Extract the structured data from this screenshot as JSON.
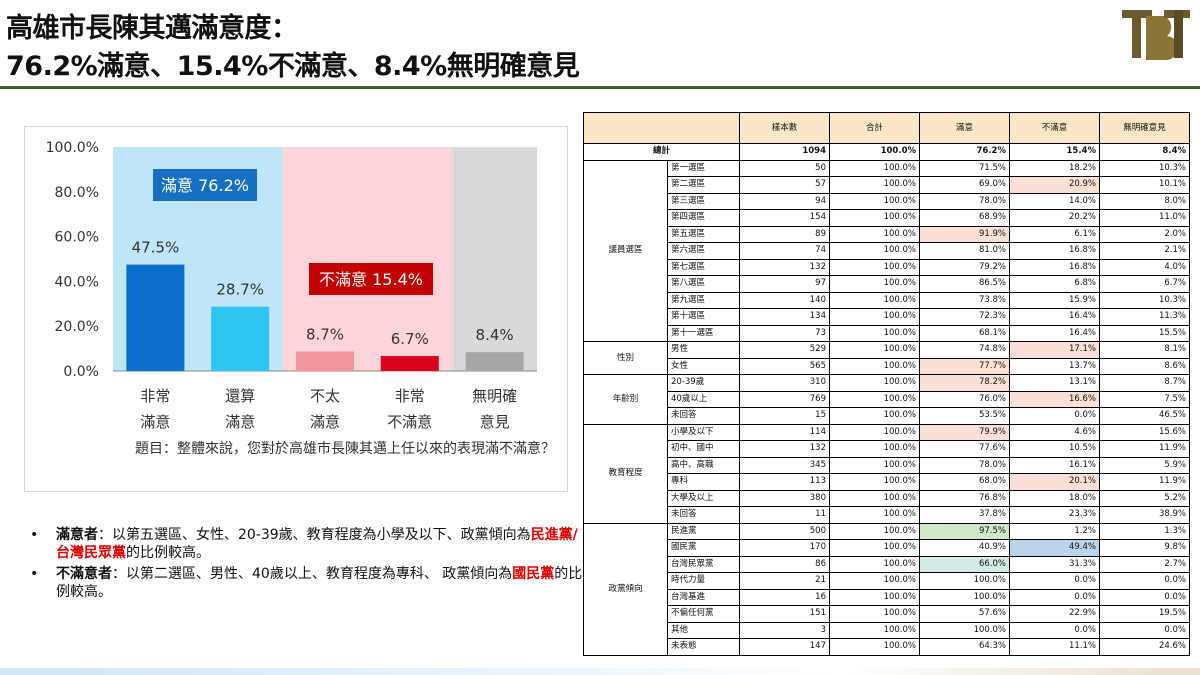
{
  "header": {
    "title_line1": "高雄市長陳其邁滿意度：",
    "title_line2": "76.2%滿意、15.4%不滿意、8.4%無明確意見",
    "logo_text": "TBT"
  },
  "colors": {
    "sat_bg": "#bfe6f8",
    "dissat_bg": "#ffd5d9",
    "none_bg": "#d9d9d9",
    "bar_very_sat": "#0b6fc9",
    "bar_sat": "#2fc4f2",
    "bar_not_very": "#f2959d",
    "bar_very_dissat": "#d9001b",
    "bar_none": "#a6a6a6",
    "sat_label_bg": "#1670c2",
    "dissat_label_bg": "#c00000",
    "rule": "#3d5a2a"
  },
  "chart_data": {
    "type": "bar",
    "categories": [
      "非常滿意",
      "還算滿意",
      "不太滿意",
      "非常不滿意",
      "無明確意見"
    ],
    "category_lines": [
      [
        "非常",
        "滿意"
      ],
      [
        "還算",
        "滿意"
      ],
      [
        "不太",
        "滿意"
      ],
      [
        "非常",
        "不滿意"
      ],
      [
        "無明確",
        "意見"
      ]
    ],
    "values": [
      47.5,
      28.7,
      8.7,
      6.7,
      8.4
    ],
    "value_labels": [
      "47.5%",
      "28.7%",
      "8.7%",
      "6.7%",
      "8.4%"
    ],
    "ylim": [
      0,
      100
    ],
    "yticks": [
      "0.0%",
      "20.0%",
      "40.0%",
      "60.0%",
      "80.0%",
      "100.0%"
    ],
    "group_labels": {
      "satisfied": "滿意 76.2%",
      "dissatisfied": "不滿意 15.4%"
    },
    "question": "題目：整體來說，您對於高雄市長陳其邁上任以來的表現滿不滿意？"
  },
  "bullets": [
    {
      "label": "滿意者",
      "text_before": "：以第五選區、女性、20-39歲、教育程度為小學及以下、政黨傾向為",
      "highlight": "民進黨/台灣民眾黨",
      "text_after": "的比例較高。"
    },
    {
      "label": "不滿意者",
      "text_before": "：以第二選區、男性、40歲以上、教育程度為專科、 政黨傾向為",
      "highlight": "國民黨",
      "text_after": "的比例較高。"
    }
  ],
  "table": {
    "headers": [
      "",
      "",
      "樣本數",
      "合計",
      "滿意",
      "不滿意",
      "無明確意見"
    ],
    "total": {
      "label": "總計",
      "values": [
        "1094",
        "100.0%",
        "76.2%",
        "15.4%",
        "8.4%"
      ]
    },
    "groups": [
      {
        "name": "議員選區",
        "rows": [
          {
            "label": "第一選區",
            "values": [
              "50",
              "100.0%",
              "71.5%",
              "18.2%",
              "10.3%"
            ]
          },
          {
            "label": "第二選區",
            "values": [
              "57",
              "100.0%",
              "69.0%",
              "20.9%",
              "10.1%"
            ],
            "hl": {
              "3": "pink"
            }
          },
          {
            "label": "第三選區",
            "values": [
              "94",
              "100.0%",
              "78.0%",
              "14.0%",
              "8.0%"
            ]
          },
          {
            "label": "第四選區",
            "values": [
              "154",
              "100.0%",
              "68.9%",
              "20.2%",
              "11.0%"
            ]
          },
          {
            "label": "第五選區",
            "values": [
              "89",
              "100.0%",
              "91.9%",
              "6.1%",
              "2.0%"
            ],
            "hl": {
              "2": "pink"
            }
          },
          {
            "label": "第六選區",
            "values": [
              "74",
              "100.0%",
              "81.0%",
              "16.8%",
              "2.1%"
            ]
          },
          {
            "label": "第七選區",
            "values": [
              "132",
              "100.0%",
              "79.2%",
              "16.8%",
              "4.0%"
            ]
          },
          {
            "label": "第八選區",
            "values": [
              "97",
              "100.0%",
              "86.5%",
              "6.8%",
              "6.7%"
            ]
          },
          {
            "label": "第九選區",
            "values": [
              "140",
              "100.0%",
              "73.8%",
              "15.9%",
              "10.3%"
            ]
          },
          {
            "label": "第十選區",
            "values": [
              "134",
              "100.0%",
              "72.3%",
              "16.4%",
              "11.3%"
            ]
          },
          {
            "label": "第十一選區",
            "values": [
              "73",
              "100.0%",
              "68.1%",
              "16.4%",
              "15.5%"
            ]
          }
        ]
      },
      {
        "name": "性別",
        "rows": [
          {
            "label": "男性",
            "values": [
              "529",
              "100.0%",
              "74.8%",
              "17.1%",
              "8.1%"
            ],
            "hl": {
              "3": "pink"
            }
          },
          {
            "label": "女性",
            "values": [
              "565",
              "100.0%",
              "77.7%",
              "13.7%",
              "8.6%"
            ],
            "hl": {
              "2": "pink"
            }
          }
        ]
      },
      {
        "name": "年齡別",
        "rows": [
          {
            "label": "20-39歲",
            "values": [
              "310",
              "100.0%",
              "78.2%",
              "13.1%",
              "8.7%"
            ],
            "hl": {
              "2": "pink"
            }
          },
          {
            "label": "40歲以上",
            "values": [
              "769",
              "100.0%",
              "76.0%",
              "16.6%",
              "7.5%"
            ],
            "hl": {
              "3": "pink"
            }
          },
          {
            "label": "未回答",
            "values": [
              "15",
              "100.0%",
              "53.5%",
              "0.0%",
              "46.5%"
            ]
          }
        ]
      },
      {
        "name": "教育程度",
        "rows": [
          {
            "label": "小學及以下",
            "values": [
              "114",
              "100.0%",
              "79.9%",
              "4.6%",
              "15.6%"
            ],
            "hl": {
              "2": "pink"
            }
          },
          {
            "label": "初中、國中",
            "values": [
              "132",
              "100.0%",
              "77.6%",
              "10.5%",
              "11.9%"
            ]
          },
          {
            "label": "高中、高職",
            "values": [
              "345",
              "100.0%",
              "78.0%",
              "16.1%",
              "5.9%"
            ]
          },
          {
            "label": "專科",
            "values": [
              "113",
              "100.0%",
              "68.0%",
              "20.1%",
              "11.9%"
            ],
            "hl": {
              "3": "pink"
            }
          },
          {
            "label": "大學及以上",
            "values": [
              "380",
              "100.0%",
              "76.8%",
              "18.0%",
              "5.2%"
            ]
          },
          {
            "label": "未回答",
            "values": [
              "11",
              "100.0%",
              "37.8%",
              "23.3%",
              "38.9%"
            ]
          }
        ]
      },
      {
        "name": "政黨傾向",
        "rows": [
          {
            "label": "民進黨",
            "values": [
              "500",
              "100.0%",
              "97.5%",
              "1.2%",
              "1.3%"
            ],
            "hl": {
              "2": "green"
            }
          },
          {
            "label": "國民黨",
            "values": [
              "170",
              "100.0%",
              "40.9%",
              "49.4%",
              "9.8%"
            ],
            "hl": {
              "3": "blue"
            }
          },
          {
            "label": "台灣民眾黨",
            "values": [
              "86",
              "100.0%",
              "66.0%",
              "31.3%",
              "2.7%"
            ],
            "hl": {
              "2": "teal"
            }
          },
          {
            "label": "時代力量",
            "values": [
              "21",
              "100.0%",
              "100.0%",
              "0.0%",
              "0.0%"
            ]
          },
          {
            "label": "台灣基進",
            "values": [
              "16",
              "100.0%",
              "100.0%",
              "0.0%",
              "0.0%"
            ]
          },
          {
            "label": "不偏任何黨",
            "values": [
              "151",
              "100.0%",
              "57.6%",
              "22.9%",
              "19.5%"
            ]
          },
          {
            "label": "其他",
            "values": [
              "3",
              "100.0%",
              "100.0%",
              "0.0%",
              "0.0%"
            ]
          },
          {
            "label": "未表態",
            "values": [
              "147",
              "100.0%",
              "64.3%",
              "11.1%",
              "24.6%"
            ]
          }
        ]
      }
    ]
  }
}
